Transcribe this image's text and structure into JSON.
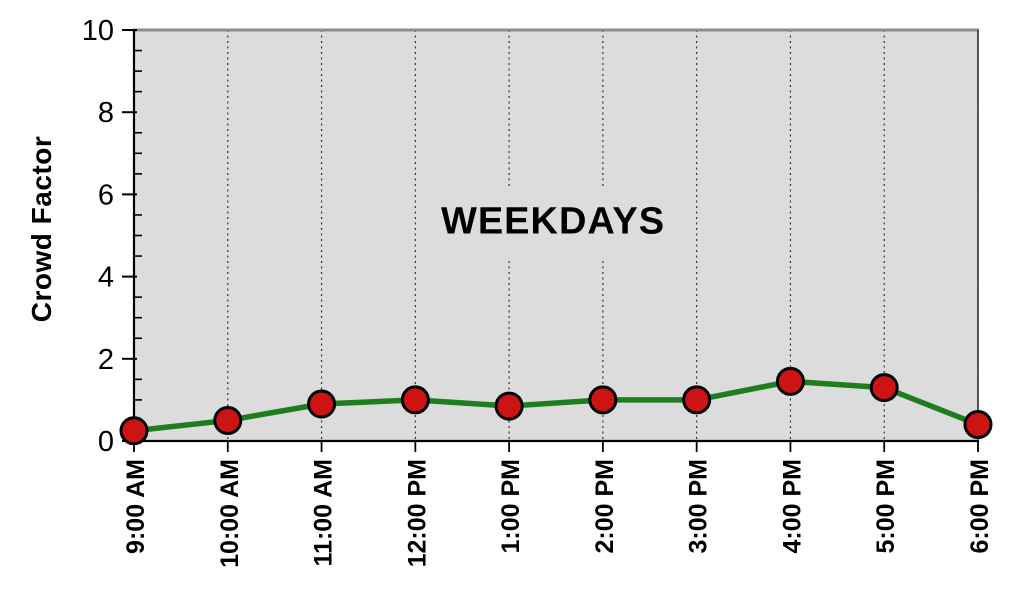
{
  "chart_data": {
    "type": "line",
    "title": "",
    "annotation": "WEEKDAYS",
    "xlabel": "",
    "ylabel": "Crowd Factor",
    "categories": [
      "9:00 AM",
      "10:00 AM",
      "11:00 AM",
      "12:00 PM",
      "1:00 PM",
      "2:00 PM",
      "3:00 PM",
      "4:00 PM",
      "5:00 PM",
      "6:00 PM"
    ],
    "series": [
      {
        "name": "WEEKDAYS",
        "values": [
          0.25,
          0.5,
          0.9,
          1.0,
          0.85,
          1.0,
          1.0,
          1.45,
          1.3,
          0.4
        ]
      }
    ],
    "ylim": [
      0,
      10
    ],
    "y_ticks": [
      0,
      2,
      4,
      6,
      8,
      10
    ],
    "y_minor_tick_step": 0.5,
    "grid": {
      "vertical": true,
      "horizontal": false,
      "style": "dotted"
    },
    "legend": "none",
    "colors": {
      "line": "#1e7e1e",
      "marker_fill": "#cc1414",
      "marker_outline": "#000000",
      "plot_background": "#dcdcdc",
      "axis": "#000000",
      "border_top": "#8c8c8c",
      "border_right": "#444444",
      "gridline": "#333333",
      "page_background": "#ffffff",
      "text": "#000000"
    }
  }
}
